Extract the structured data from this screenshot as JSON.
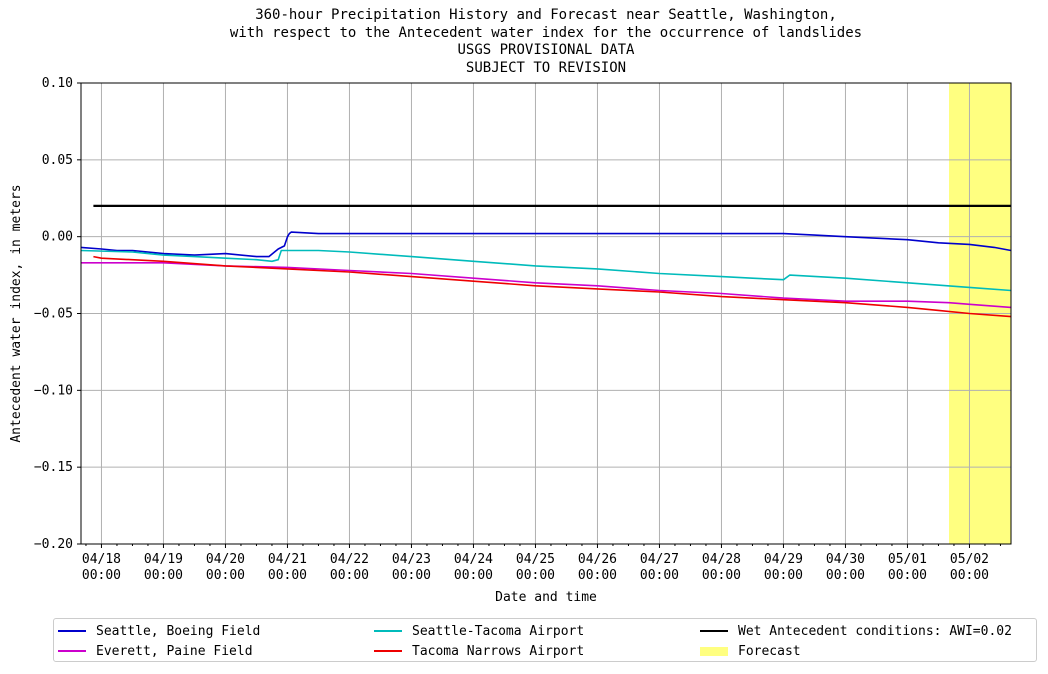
{
  "chart_data": {
    "type": "line",
    "title": [
      "360-hour Precipitation History and Forecast near Seattle, Washington,",
      "with respect to the Antecedent water index for the occurrence of landslides",
      "USGS PROVISIONAL DATA",
      "SUBJECT TO REVISION"
    ],
    "xlabel": "Date and time",
    "ylabel": "Antecedent water index, in meters",
    "xlim_days": [
      -0.33,
      14.67
    ],
    "ylim": [
      -0.2,
      0.1
    ],
    "x_ticks": [
      {
        "line1": "04/18",
        "line2": "00:00"
      },
      {
        "line1": "04/19",
        "line2": "00:00"
      },
      {
        "line1": "04/20",
        "line2": "00:00"
      },
      {
        "line1": "04/21",
        "line2": "00:00"
      },
      {
        "line1": "04/22",
        "line2": "00:00"
      },
      {
        "line1": "04/23",
        "line2": "00:00"
      },
      {
        "line1": "04/24",
        "line2": "00:00"
      },
      {
        "line1": "04/25",
        "line2": "00:00"
      },
      {
        "line1": "04/26",
        "line2": "00:00"
      },
      {
        "line1": "04/27",
        "line2": "00:00"
      },
      {
        "line1": "04/28",
        "line2": "00:00"
      },
      {
        "line1": "04/29",
        "line2": "00:00"
      },
      {
        "line1": "04/30",
        "line2": "00:00"
      },
      {
        "line1": "05/01",
        "line2": "00:00"
      },
      {
        "line1": "05/02",
        "line2": "00:00"
      }
    ],
    "y_ticks": [
      "0.10",
      "0.05",
      "0.00",
      "−0.05",
      "−0.10",
      "−0.15",
      "−0.20"
    ],
    "y_tick_values": [
      0.1,
      0.05,
      0.0,
      -0.05,
      -0.1,
      -0.15,
      -0.2
    ],
    "grid": true,
    "legend_position": "bottom",
    "forecast_region": {
      "start_day": 13.67,
      "end_day": 14.67,
      "color": "#ffff80"
    },
    "series": [
      {
        "name": "Seattle, Boeing Field",
        "color": "#0000cc",
        "x": [
          -0.33,
          0.0,
          0.25,
          0.5,
          1.0,
          1.5,
          2.0,
          2.5,
          2.7,
          2.85,
          2.95,
          3.0,
          3.03,
          3.06,
          3.5,
          4.0,
          6.0,
          8.0,
          10.0,
          11.0,
          11.5,
          12.0,
          12.5,
          13.0,
          13.5,
          14.0,
          14.4,
          14.67
        ],
        "y": [
          -0.007,
          -0.008,
          -0.009,
          -0.009,
          -0.011,
          -0.012,
          -0.011,
          -0.013,
          -0.013,
          -0.008,
          -0.006,
          0.0,
          0.002,
          0.003,
          0.002,
          0.002,
          0.002,
          0.002,
          0.002,
          0.002,
          0.001,
          0.0,
          -0.001,
          -0.002,
          -0.004,
          -0.005,
          -0.007,
          -0.009
        ]
      },
      {
        "name": "Everett, Paine Field",
        "color": "#cc00cc",
        "x": [
          -0.33,
          1.0,
          2.0,
          3.0,
          4.0,
          5.0,
          6.0,
          7.0,
          8.0,
          9.0,
          10.0,
          11.0,
          12.0,
          13.0,
          13.67,
          14.0,
          14.67
        ],
        "y": [
          -0.017,
          -0.017,
          -0.019,
          -0.02,
          -0.022,
          -0.024,
          -0.027,
          -0.03,
          -0.032,
          -0.035,
          -0.037,
          -0.04,
          -0.042,
          -0.042,
          -0.043,
          -0.044,
          -0.046
        ]
      },
      {
        "name": "Seattle-Tacoma Airport",
        "color": "#00bbbb",
        "x": [
          -0.33,
          0.5,
          1.0,
          1.5,
          2.0,
          2.5,
          2.75,
          2.85,
          2.9,
          3.5,
          4.0,
          5.0,
          6.0,
          7.0,
          8.0,
          9.0,
          10.0,
          10.5,
          11.0,
          11.1,
          12.0,
          13.0,
          14.0,
          14.67
        ],
        "y": [
          -0.009,
          -0.01,
          -0.012,
          -0.013,
          -0.014,
          -0.015,
          -0.016,
          -0.015,
          -0.009,
          -0.009,
          -0.01,
          -0.013,
          -0.016,
          -0.019,
          -0.021,
          -0.024,
          -0.026,
          -0.027,
          -0.028,
          -0.025,
          -0.027,
          -0.03,
          -0.033,
          -0.035
        ]
      },
      {
        "name": "Tacoma Narrows Airport",
        "color": "#ee0000",
        "x": [
          -0.13,
          0.0,
          1.0,
          2.0,
          3.0,
          4.0,
          5.0,
          6.0,
          7.0,
          8.0,
          9.0,
          10.0,
          11.0,
          12.0,
          13.0,
          13.5,
          14.0,
          14.67
        ],
        "y": [
          -0.013,
          -0.014,
          -0.016,
          -0.019,
          -0.021,
          -0.023,
          -0.026,
          -0.029,
          -0.032,
          -0.034,
          -0.036,
          -0.039,
          -0.041,
          -0.043,
          -0.046,
          -0.048,
          -0.05,
          -0.052
        ]
      },
      {
        "name": "Wet Antecedent conditions: AWI=0.02",
        "color": "#000000",
        "x": [
          -0.13,
          14.67
        ],
        "y": [
          0.02,
          0.02
        ]
      }
    ],
    "legend": [
      {
        "label": "Seattle, Boeing Field",
        "color": "#0000cc",
        "kind": "line"
      },
      {
        "label": "Everett, Paine Field",
        "color": "#cc00cc",
        "kind": "line"
      },
      {
        "label": "Seattle-Tacoma Airport",
        "color": "#00bbbb",
        "kind": "line"
      },
      {
        "label": "Tacoma Narrows Airport",
        "color": "#ee0000",
        "kind": "line"
      },
      {
        "label": "Wet Antecedent conditions: AWI=0.02",
        "color": "#000000",
        "kind": "line"
      },
      {
        "label": "Forecast",
        "color": "#ffff80",
        "kind": "patch"
      }
    ]
  }
}
